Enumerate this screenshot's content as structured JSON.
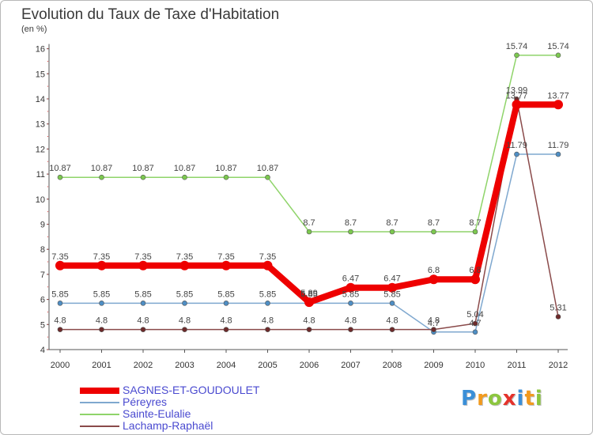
{
  "header": {
    "title": "Evolution du Taux de Taxe d'Habitation",
    "unit": "(en %)"
  },
  "brand": {
    "text": "Proxiti",
    "letter_colors": [
      "#3a8fd8",
      "#f29a1d",
      "#8cc63f",
      "#e4322b",
      "#3a8fd8",
      "#f29a1d",
      "#8cc63f"
    ]
  },
  "chart_data": {
    "type": "line",
    "title": "Evolution du Taux de Taxe d'Habitation",
    "ylabel": "(en %)",
    "xlabel": "",
    "categories": [
      "2000",
      "2001",
      "2002",
      "2003",
      "2004",
      "2005",
      "2006",
      "2007",
      "2008",
      "2009",
      "2010",
      "2011",
      "2012"
    ],
    "yticks": [
      "4",
      "5",
      "6",
      "7",
      "8",
      "9",
      "10",
      "11",
      "12",
      "13",
      "14",
      "15",
      "16"
    ],
    "ylim": [
      4,
      16
    ],
    "grid": false,
    "legend_position": "bottom-left",
    "series": [
      {
        "name": "Sainte-Eulalie",
        "color": "#8fd46a",
        "marker_color": "#7cc84f",
        "values": [
          10.87,
          10.87,
          10.87,
          10.87,
          10.87,
          10.87,
          8.7,
          8.7,
          8.7,
          8.7,
          8.7,
          15.74,
          15.74
        ],
        "labels": [
          "10.87",
          "10.87",
          "10.87",
          "10.87",
          "10.87",
          "10.87",
          "8.7",
          "8.7",
          "8.7",
          "8.7",
          "8.7",
          "15.74",
          "15.74"
        ]
      },
      {
        "name": "Péreyres",
        "color": "#7fa8cf",
        "marker_color": "#4e8ec4",
        "values": [
          5.85,
          5.85,
          5.85,
          5.85,
          5.85,
          5.85,
          5.85,
          5.85,
          5.85,
          4.7,
          4.7,
          11.79,
          11.79
        ],
        "labels": [
          "5.85",
          "5.85",
          "5.85",
          "5.85",
          "5.85",
          "5.85",
          "5.85",
          "5.85",
          "5.85",
          "4.7",
          "4.7",
          "11.79",
          "11.79"
        ]
      },
      {
        "name": "Lachamp-Raphaël",
        "color": "#8a4a4a",
        "marker_color": "#6e2a2a",
        "values": [
          4.8,
          4.8,
          4.8,
          4.8,
          4.8,
          4.8,
          4.8,
          4.8,
          4.8,
          4.8,
          5.04,
          13.99,
          5.31
        ],
        "labels": [
          "4.8",
          "4.8",
          "4.8",
          "4.8",
          "4.8",
          "4.8",
          "4.8",
          "4.8",
          "4.8",
          "4.8",
          "5.04",
          "13.99",
          "5.31"
        ]
      },
      {
        "name": "SAGNES-ET-GOUDOULET",
        "color": "#ee0000",
        "marker_color": "#ee0000",
        "values": [
          7.35,
          7.35,
          7.35,
          7.35,
          7.35,
          7.35,
          5.89,
          6.47,
          6.47,
          6.8,
          6.8,
          13.77,
          13.77
        ],
        "labels": [
          "7.35",
          "7.35",
          "7.35",
          "7.35",
          "7.35",
          "7.35",
          "5.89",
          "6.47",
          "6.47",
          "6.8",
          "6.8",
          "13.77",
          "13.77"
        ]
      }
    ]
  }
}
